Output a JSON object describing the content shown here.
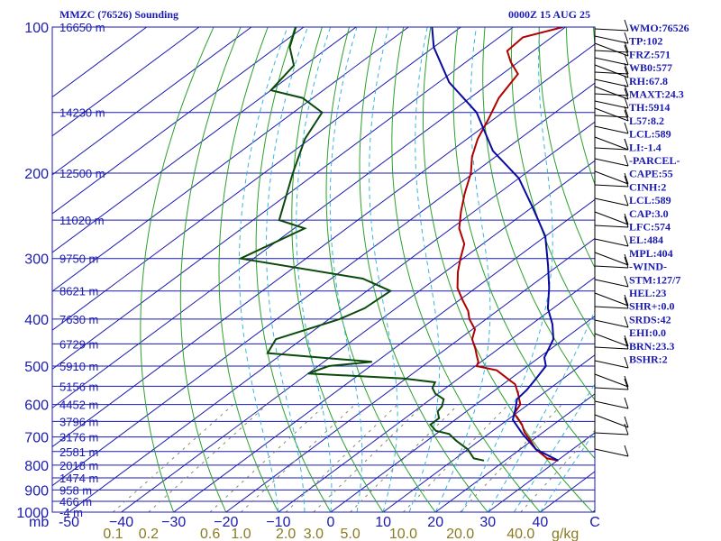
{
  "header": {
    "station": "MMZC (76526) Sounding",
    "time": "0000Z 15 AUG 25"
  },
  "axis_unit_left": "mb",
  "axis_unit_mix": "g/kg",
  "indices": [
    "WMO:76526",
    "TP:102",
    "FRZ:571",
    "WB0:577",
    "RH:67.8",
    "MAXT:24.3",
    "TH:5914",
    "L57:8.2",
    "LCL:589",
    "LI:-1.4",
    "-PARCEL-",
    "CAPE:55",
    "CINH:2",
    "LCL:589",
    "CAP:3.0",
    "LFC:574",
    "EL:484",
    "MPL:404",
    "-WIND-",
    "STM:127/7",
    "HEL:23",
    "SHR+:0.0",
    "SRDS:42",
    "EHI:0.0",
    "BRN:23.3",
    "BSHR:2"
  ],
  "colors": {
    "isobar": "#1a1ab0",
    "isotherm": "#1a1ab0",
    "dry_adiabat": "#2ca02c",
    "moist_adiabat": "#39b6d8",
    "mixing_ratio": "#8a8a60",
    "temperature": "#b00000",
    "dewpoint": "#0a4a0a",
    "parcel": "#0a0aa0"
  },
  "chart_data": {
    "type": "line",
    "title": "MMZC (76526) Sounding",
    "subtitle": "0000Z 15 AUG 25",
    "pressure_levels": [
      100,
      200,
      300,
      400,
      500,
      600,
      700,
      800,
      900,
      1000
    ],
    "pressure_labels": [
      "100",
      "200",
      "300",
      "400",
      "500",
      "600",
      "700",
      "800",
      "900",
      "1000"
    ],
    "height_levels": [
      {
        "p": 100,
        "h": "16650 m"
      },
      {
        "p": 150,
        "h": "14230 m"
      },
      {
        "p": 200,
        "h": "12500 m"
      },
      {
        "p": 250,
        "h": "11020 m"
      },
      {
        "p": 300,
        "h": "9750 m"
      },
      {
        "p": 350,
        "h": "8621 m"
      },
      {
        "p": 400,
        "h": "7630 m"
      },
      {
        "p": 450,
        "h": "6729 m"
      },
      {
        "p": 500,
        "h": "5910 m"
      },
      {
        "p": 550,
        "h": "5156 m"
      },
      {
        "p": 600,
        "h": "4452 m"
      },
      {
        "p": 650,
        "h": "3796 m"
      },
      {
        "p": 700,
        "h": "3176 m"
      },
      {
        "p": 750,
        "h": "2581 m"
      },
      {
        "p": 800,
        "h": "2018 m"
      },
      {
        "p": 850,
        "h": "1474 m"
      },
      {
        "p": 900,
        "h": "958 m"
      },
      {
        "p": 950,
        "h": "466 m"
      },
      {
        "p": 1000,
        "h": "-4 m"
      }
    ],
    "temperature_ticks": [
      -50,
      -40,
      -30,
      -20,
      -10,
      0,
      10,
      20,
      30,
      40
    ],
    "temperature_labels": [
      "-50",
      "−40",
      "−30",
      "−20",
      "−10",
      "0",
      "10",
      "20",
      "30",
      "40"
    ],
    "mixing_ratio_ticks": [
      0.1,
      0.2,
      0.6,
      1.0,
      2.0,
      3.0,
      5.0,
      10.0,
      20.0,
      40.0
    ],
    "mixing_ratio_labels": [
      "0.1",
      "0.2",
      "0.6",
      "1.0",
      "2.0",
      "3.0",
      "5.0",
      "10.0",
      "20.0",
      "40.0"
    ],
    "xlim": [
      -50,
      50
    ],
    "plim": [
      100,
      1000
    ],
    "series": [
      {
        "key": "temperature",
        "points": [
          [
            30.2,
            783
          ],
          [
            27.5,
            775
          ],
          [
            23.0,
            742
          ],
          [
            19.5,
            710
          ],
          [
            16.5,
            685
          ],
          [
            14.0,
            660
          ],
          [
            11.0,
            636
          ],
          [
            9.7,
            627
          ],
          [
            8.5,
            600
          ],
          [
            5.3,
            570
          ],
          [
            2.3,
            545
          ],
          [
            -0.7,
            530
          ],
          [
            -4.8,
            510
          ],
          [
            -9.7,
            500
          ],
          [
            -10.5,
            490
          ],
          [
            -12.5,
            475
          ],
          [
            -14.5,
            460
          ],
          [
            -17.5,
            440
          ],
          [
            -19.5,
            420
          ],
          [
            -23.2,
            400
          ],
          [
            -25.5,
            385
          ],
          [
            -29.5,
            365
          ],
          [
            -33.5,
            345
          ],
          [
            -37.5,
            320
          ],
          [
            -40.5,
            300
          ],
          [
            -43.5,
            280
          ],
          [
            -48.5,
            260
          ],
          [
            -52.5,
            240
          ],
          [
            -56.5,
            220
          ],
          [
            -60.5,
            200
          ],
          [
            -64.5,
            185
          ],
          [
            -68.0,
            170
          ],
          [
            -71.0,
            155
          ],
          [
            -74.5,
            140
          ],
          [
            -77.0,
            125
          ],
          [
            -81.5,
            118
          ],
          [
            -85.0,
            112
          ],
          [
            -85.5,
            105
          ],
          [
            -80.5,
            100
          ]
        ]
      },
      {
        "key": "dewpoint",
        "points": [
          [
            16.0,
            783
          ],
          [
            13.5,
            775
          ],
          [
            10.0,
            742
          ],
          [
            5.5,
            712
          ],
          [
            2.5,
            690
          ],
          [
            -0.8,
            680
          ],
          [
            -3.5,
            660
          ],
          [
            -3.5,
            640
          ],
          [
            -5.5,
            620
          ],
          [
            -6.0,
            605
          ],
          [
            -7.5,
            585
          ],
          [
            -10.5,
            570
          ],
          [
            -12.5,
            555
          ],
          [
            -13.5,
            540
          ],
          [
            -20.5,
            530
          ],
          [
            -40.0,
            518
          ],
          [
            -38.0,
            500
          ],
          [
            -30.8,
            490
          ],
          [
            -53.0,
            470
          ],
          [
            -55.0,
            440
          ],
          [
            -48.0,
            400
          ],
          [
            -46.0,
            380
          ],
          [
            -45.5,
            350
          ],
          [
            -54.0,
            330
          ],
          [
            -82.5,
            300
          ],
          [
            -78.0,
            260
          ],
          [
            -85.0,
            250
          ],
          [
            -94.5,
            200
          ],
          [
            -101.0,
            170
          ],
          [
            -104.5,
            150
          ],
          [
            -112.0,
            140
          ],
          [
            -120.0,
            135
          ],
          [
            -122.0,
            120
          ],
          [
            -127.5,
            110
          ],
          [
            -131.5,
            100
          ]
        ]
      },
      {
        "key": "parcel",
        "points": [
          [
            30.2,
            783
          ],
          [
            23.0,
            742
          ],
          [
            16.5,
            690
          ],
          [
            11.0,
            645
          ],
          [
            8.5,
            610
          ],
          [
            6.5,
            585
          ],
          [
            6.0,
            560
          ],
          [
            4.8,
            530
          ],
          [
            3.5,
            500
          ],
          [
            1.0,
            480
          ],
          [
            -2.0,
            440
          ],
          [
            -6.0,
            410
          ],
          [
            -11.0,
            380
          ],
          [
            -16.0,
            345
          ],
          [
            -22.0,
            310
          ],
          [
            -30.0,
            270
          ],
          [
            -40.0,
            235
          ],
          [
            -50.0,
            205
          ],
          [
            -62.0,
            180
          ],
          [
            -75.0,
            150
          ],
          [
            -88.0,
            130
          ],
          [
            -100.0,
            110
          ],
          [
            -105.5,
            100
          ]
        ]
      }
    ],
    "grid": true
  }
}
